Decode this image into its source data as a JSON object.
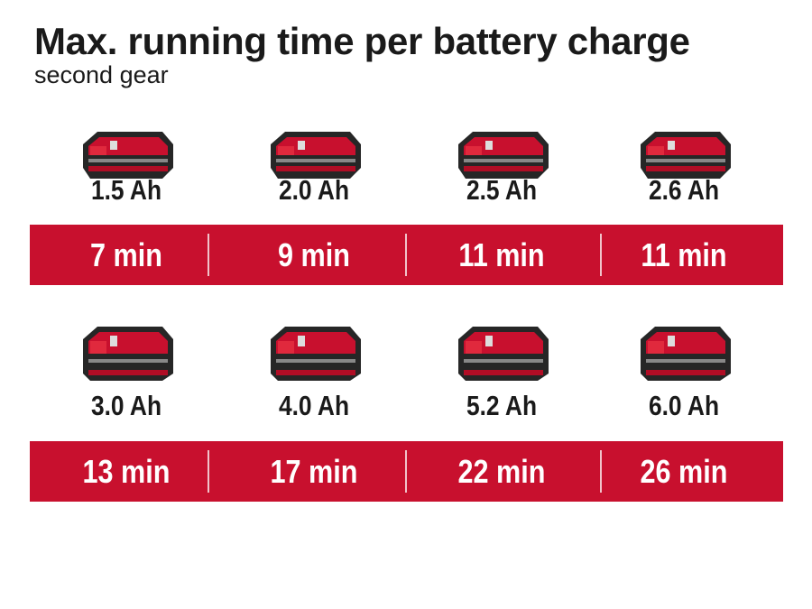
{
  "header": {
    "title": "Max. running time per battery charge",
    "subtitle": "second gear"
  },
  "colors": {
    "accent": "#c8102e",
    "battery_body": "#2a2a2a"
  },
  "rows": [
    {
      "batteries": [
        {
          "capacity": "1.5 Ah",
          "runtime": "7 min",
          "icon": "battery-pack-icon"
        },
        {
          "capacity": "2.0 Ah",
          "runtime": "9 min",
          "icon": "battery-pack-icon"
        },
        {
          "capacity": "2.5 Ah",
          "runtime": "11 min",
          "icon": "battery-pack-icon"
        },
        {
          "capacity": "2.6 Ah",
          "runtime": "11 min",
          "icon": "battery-pack-icon"
        }
      ]
    },
    {
      "batteries": [
        {
          "capacity": "3.0 Ah",
          "runtime": "13 min",
          "icon": "battery-pack-icon"
        },
        {
          "capacity": "4.0 Ah",
          "runtime": "17 min",
          "icon": "battery-pack-icon"
        },
        {
          "capacity": "5.2 Ah",
          "runtime": "22 min",
          "icon": "battery-pack-icon"
        },
        {
          "capacity": "6.0 Ah",
          "runtime": "26 min",
          "icon": "battery-pack-icon"
        }
      ]
    }
  ]
}
